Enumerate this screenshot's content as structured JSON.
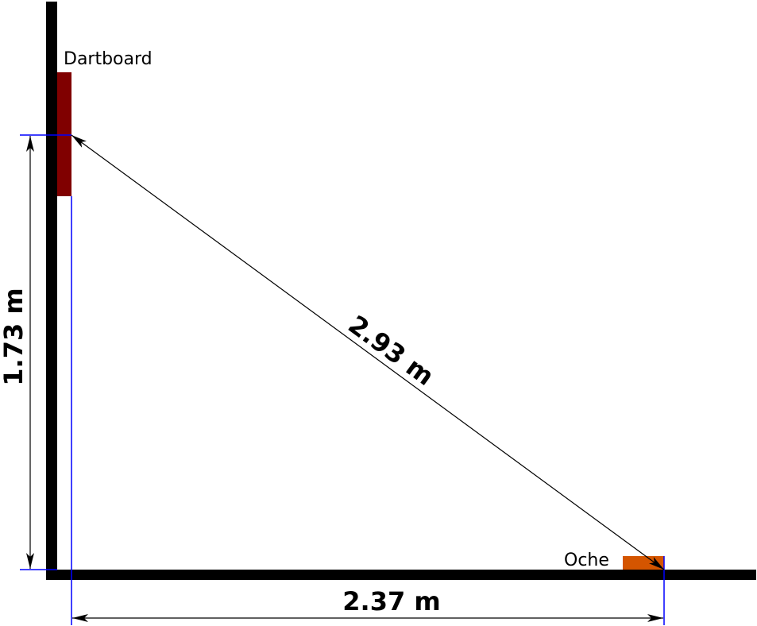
{
  "labels": {
    "dartboard": "Dartboard",
    "oche": "Oche"
  },
  "dimensions": {
    "height": "1.73 m",
    "distance": "2.37 m",
    "diagonal": "2.93 m"
  },
  "colors": {
    "wall": "#000000",
    "dartboard": "#800000",
    "oche": "#d45500",
    "guide_lines": "#0000ff"
  }
}
